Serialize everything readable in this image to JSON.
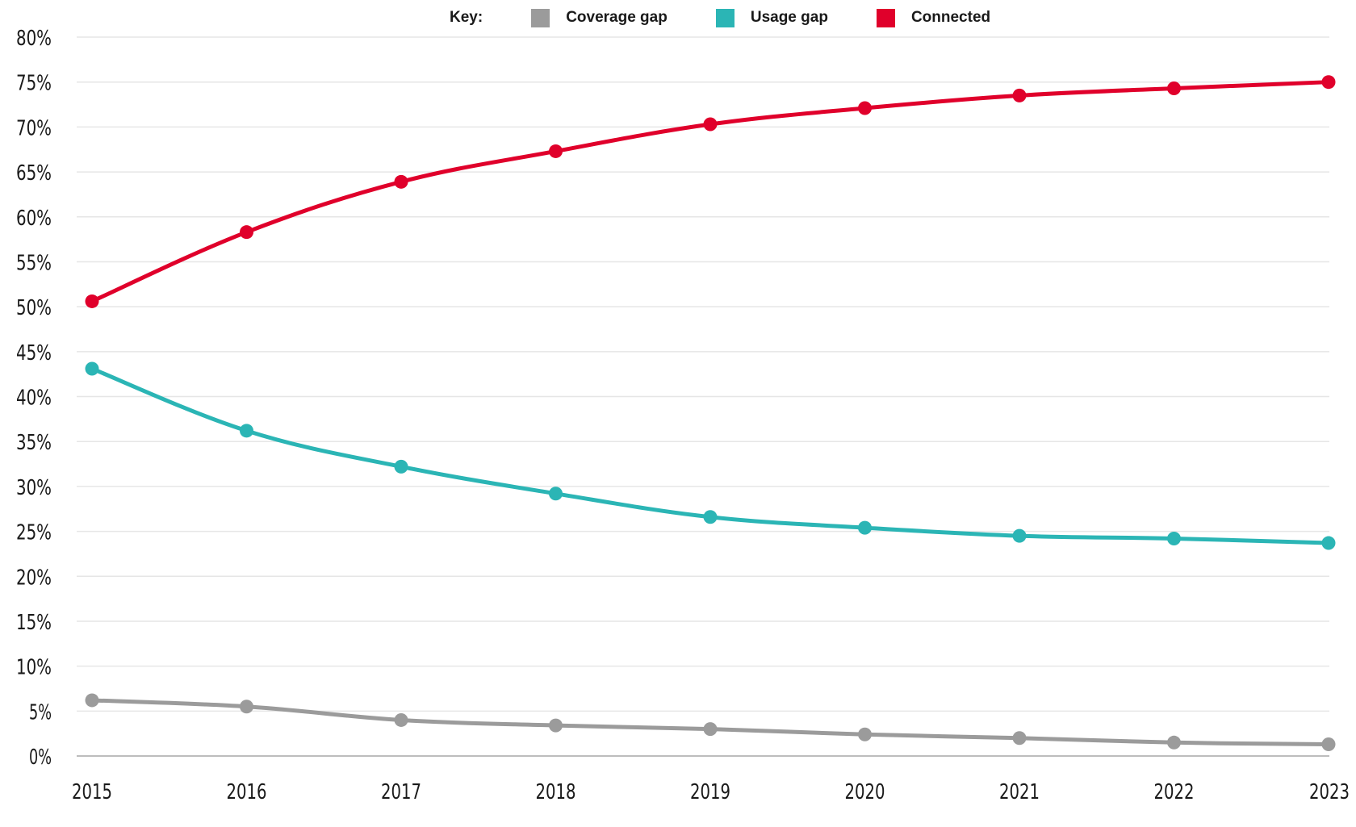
{
  "chart_data": {
    "type": "line",
    "title": "",
    "xlabel": "",
    "ylabel": "",
    "x": [
      "2015",
      "2016",
      "2017",
      "2018",
      "2019",
      "2020",
      "2021",
      "2022",
      "2023"
    ],
    "ylim": [
      0,
      80
    ],
    "yticks": [
      0,
      5,
      10,
      15,
      20,
      25,
      30,
      35,
      40,
      45,
      50,
      55,
      60,
      65,
      70,
      75,
      80
    ],
    "ytick_labels": [
      "0%",
      "5%",
      "10%",
      "15%",
      "20%",
      "25%",
      "30%",
      "35%",
      "40%",
      "45%",
      "50%",
      "55%",
      "60%",
      "65%",
      "70%",
      "75%",
      "80%"
    ],
    "grid": "horizontal",
    "legend": {
      "title": "Key:",
      "position": "top-center",
      "entries": [
        "Coverage gap",
        "Usage gap",
        "Connected"
      ]
    },
    "series": [
      {
        "name": "Coverage gap",
        "color": "#9b9b9b",
        "values": [
          6.2,
          5.5,
          4.0,
          3.4,
          3.0,
          2.4,
          2.0,
          1.5,
          1.3
        ]
      },
      {
        "name": "Usage gap",
        "color": "#2bb5b5",
        "values": [
          43.1,
          36.2,
          32.2,
          29.2,
          26.6,
          25.4,
          24.5,
          24.2,
          23.7
        ]
      },
      {
        "name": "Connected",
        "color": "#e0002b",
        "values": [
          50.6,
          58.3,
          63.9,
          67.3,
          70.3,
          72.1,
          73.5,
          74.3,
          75.0
        ]
      }
    ]
  }
}
